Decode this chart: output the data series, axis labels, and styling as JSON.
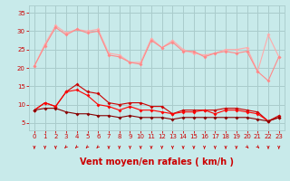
{
  "background_color": "#c8eaea",
  "grid_color": "#aacccc",
  "xlabel": "Vent moyen/en rafales ( km/h )",
  "xlabel_color": "#cc0000",
  "xlabel_fontsize": 7,
  "tick_color": "#cc0000",
  "ylim": [
    3,
    37
  ],
  "xlim": [
    -0.5,
    23.5
  ],
  "yticks": [
    5,
    10,
    15,
    20,
    25,
    30,
    35
  ],
  "xticks": [
    0,
    1,
    2,
    3,
    4,
    5,
    6,
    7,
    8,
    9,
    10,
    11,
    12,
    13,
    14,
    15,
    16,
    17,
    18,
    19,
    20,
    21,
    22,
    23
  ],
  "line1_color": "#ffaaaa",
  "line2_color": "#ff8888",
  "line3_color": "#cc0000",
  "line4_color": "#ff0000",
  "line5_color": "#880000",
  "line1_y": [
    20.5,
    26.5,
    31.5,
    29.5,
    30.5,
    30.0,
    30.5,
    24.0,
    23.5,
    21.5,
    21.5,
    28.0,
    25.5,
    27.5,
    25.0,
    24.0,
    23.5,
    24.0,
    25.0,
    25.0,
    25.5,
    19.0,
    29.0,
    23.0
  ],
  "line2_y": [
    20.5,
    26.0,
    31.0,
    29.0,
    30.5,
    29.5,
    30.0,
    23.5,
    23.0,
    21.5,
    21.0,
    27.5,
    25.5,
    27.0,
    24.5,
    24.5,
    23.0,
    24.0,
    24.5,
    24.0,
    24.5,
    19.0,
    16.5,
    23.0
  ],
  "line3_y": [
    8.5,
    10.5,
    9.5,
    13.5,
    15.5,
    13.5,
    13.0,
    10.5,
    10.0,
    10.5,
    10.5,
    9.5,
    9.5,
    7.5,
    8.5,
    8.5,
    8.5,
    8.5,
    9.0,
    9.0,
    8.5,
    8.0,
    5.5,
    7.0
  ],
  "line4_y": [
    8.5,
    10.5,
    9.5,
    13.5,
    14.0,
    12.5,
    10.0,
    9.5,
    8.5,
    9.5,
    8.5,
    8.5,
    8.0,
    7.5,
    8.0,
    8.0,
    8.5,
    7.5,
    8.5,
    8.5,
    8.0,
    7.5,
    5.5,
    6.5
  ],
  "line5_y": [
    8.5,
    9.0,
    9.0,
    8.0,
    7.5,
    7.5,
    7.0,
    7.0,
    6.5,
    7.0,
    6.5,
    6.5,
    6.5,
    6.0,
    6.5,
    6.5,
    6.5,
    6.5,
    6.5,
    6.5,
    6.5,
    6.0,
    5.5,
    6.5
  ],
  "arrow_color": "#cc0000",
  "arrow_angles": [
    270,
    270,
    270,
    225,
    225,
    225,
    225,
    270,
    270,
    270,
    270,
    270,
    270,
    270,
    270,
    270,
    270,
    270,
    270,
    270,
    315,
    315,
    270,
    270
  ]
}
